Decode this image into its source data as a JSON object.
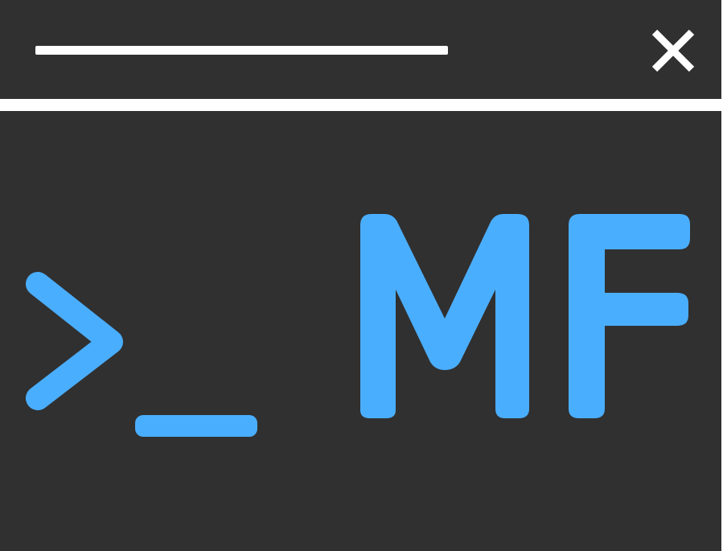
{
  "logo": {
    "prompt_symbol": ">_",
    "initials": "MF"
  },
  "colors": {
    "background": "#303030",
    "foreground": "#ffffff",
    "accent": "#4aaeff"
  },
  "icons": {
    "close": "close-icon"
  }
}
